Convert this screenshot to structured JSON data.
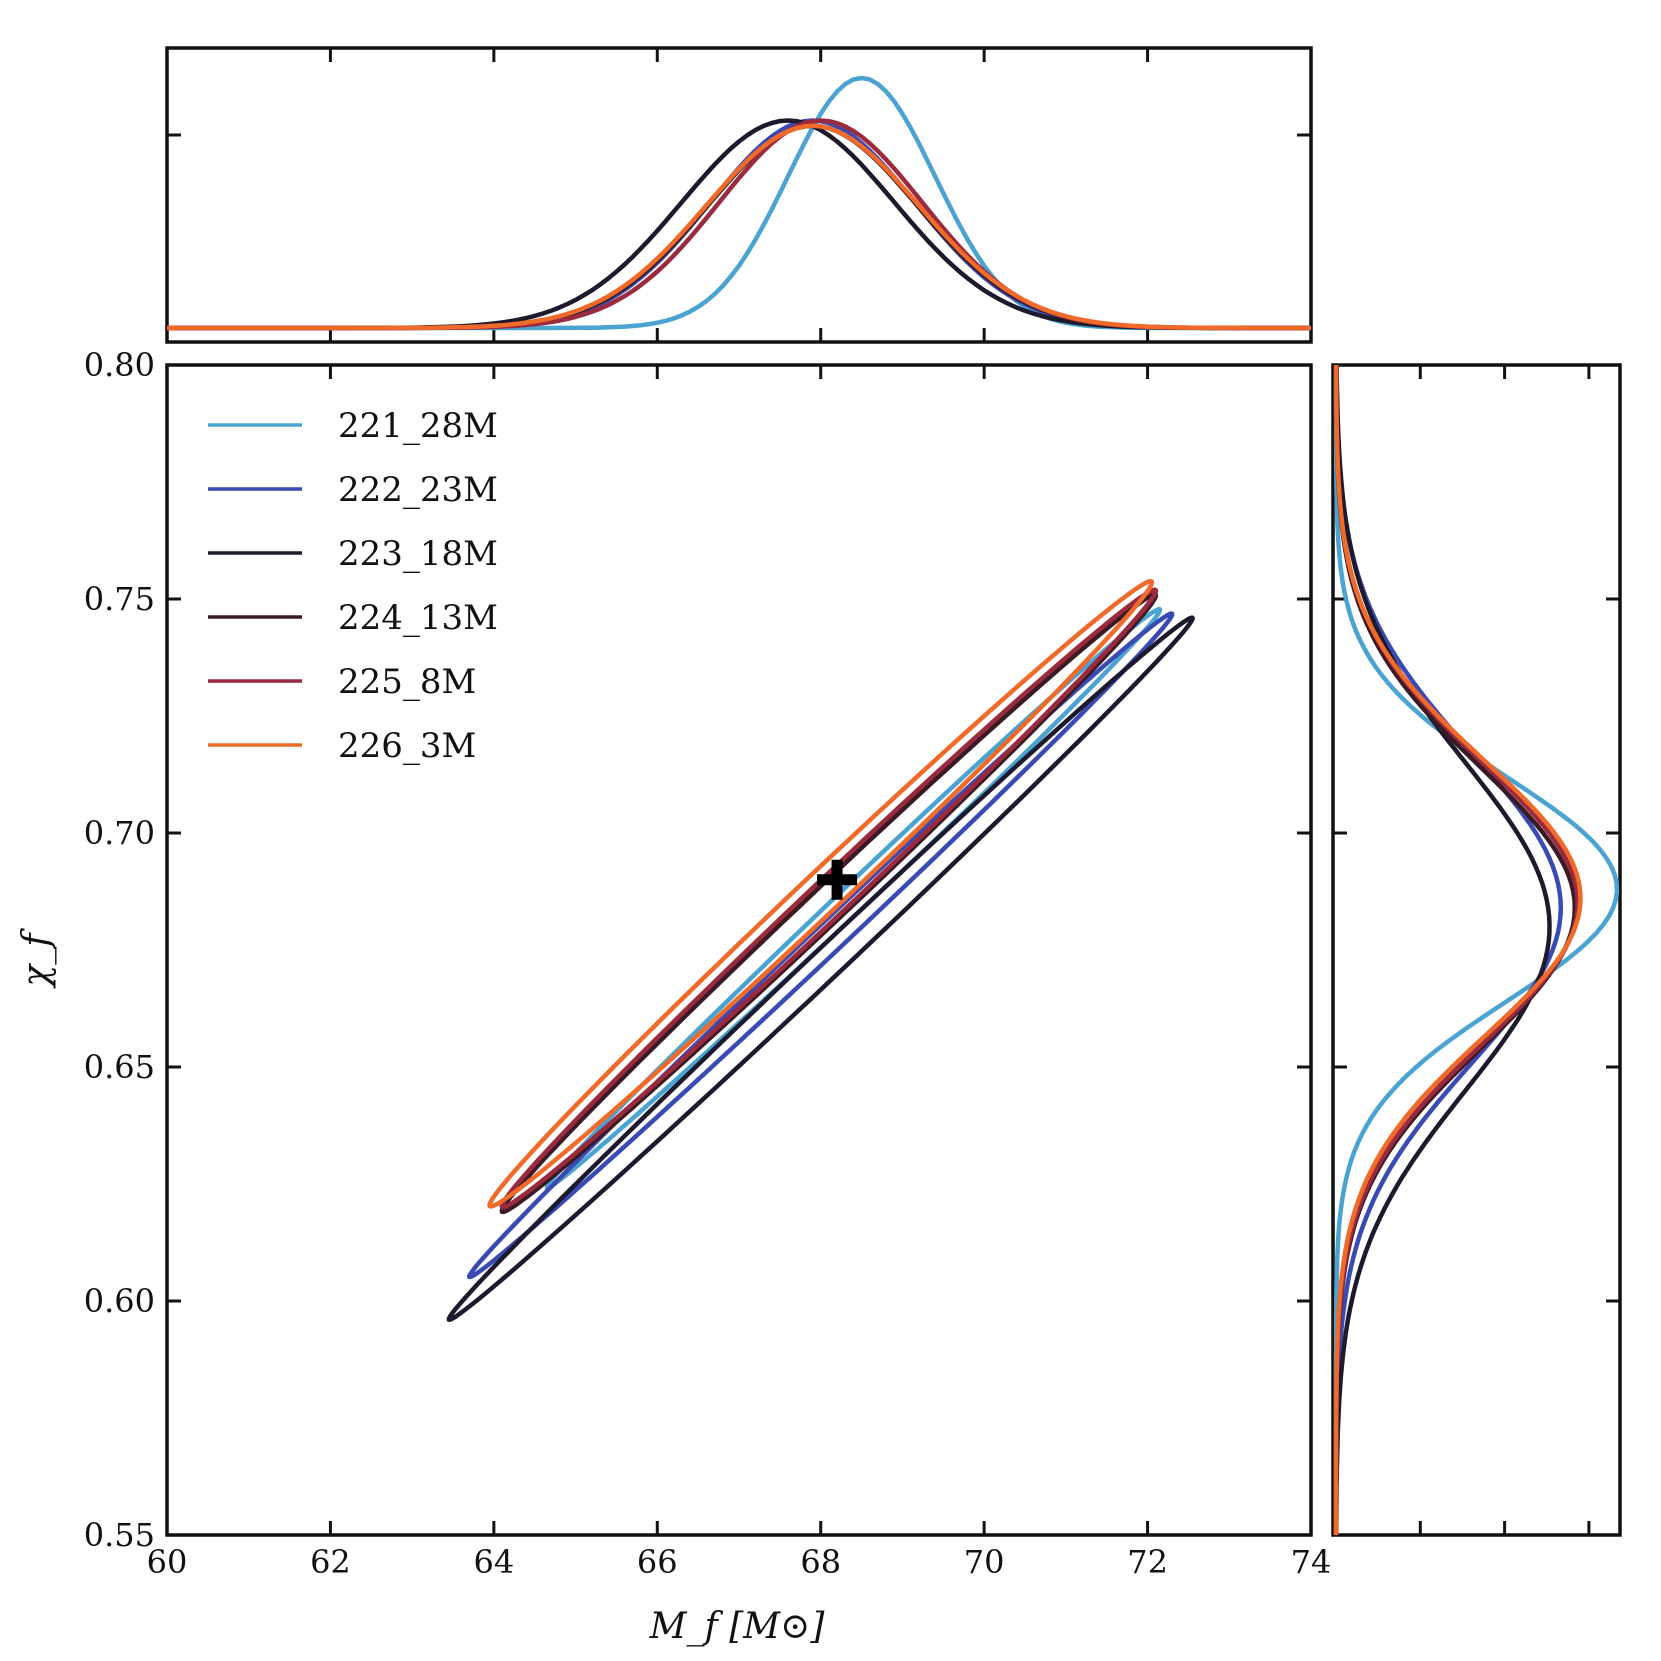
{
  "chart_data": {
    "type": "corner-plot",
    "xlabel": "M_f [M⊙]",
    "ylabel": "χ_f",
    "xlim": [
      60,
      74
    ],
    "ylim": [
      0.55,
      0.8
    ],
    "x_tick_labels": [
      "60",
      "62",
      "64",
      "66",
      "68",
      "70",
      "72",
      "74"
    ],
    "y_tick_labels": [
      "0.55",
      "0.60",
      "0.65",
      "0.70",
      "0.75",
      "0.80"
    ],
    "legend_position": "top-left",
    "marker": {
      "label": "true-value",
      "x": 68.2,
      "y": 0.69,
      "symbol": "plus"
    },
    "series": [
      {
        "name": "221_28M",
        "color": "#4aa3d0",
        "mx": 68.5,
        "sx": 0.9,
        "my": 0.688,
        "sy": 0.024,
        "px": 0.94,
        "py": 1.0,
        "contour": {
          "cx": 68.4,
          "cy": 0.686,
          "a": 3.75,
          "b": 0.3,
          "tilt": 0.9
        }
      },
      {
        "name": "222_23M",
        "color": "#3a4ab3",
        "mx": 67.9,
        "sx": 1.25,
        "my": 0.684,
        "sy": 0.033,
        "px": 0.78,
        "py": 0.8,
        "contour": {
          "cx": 68.0,
          "cy": 0.676,
          "a": 4.3,
          "b": 0.33,
          "tilt": 0.5
        }
      },
      {
        "name": "223_18M",
        "color": "#1e1a2e",
        "mx": 67.6,
        "sx": 1.3,
        "my": 0.68,
        "sy": 0.035,
        "px": 0.78,
        "py": 0.76,
        "contour": {
          "cx": 68.0,
          "cy": 0.671,
          "a": 4.55,
          "b": 0.34,
          "tilt": 0.3
        }
      },
      {
        "name": "224_13M",
        "color": "#3a1a24",
        "mx": 67.9,
        "sx": 1.28,
        "my": 0.684,
        "sy": 0.03,
        "px": 0.76,
        "py": 0.85,
        "contour": {
          "cx": 68.1,
          "cy": 0.685,
          "a": 4.0,
          "b": 0.4,
          "tilt": 0.0
        }
      },
      {
        "name": "225_8M",
        "color": "#9a2a3e",
        "mx": 68.0,
        "sx": 1.24,
        "my": 0.685,
        "sy": 0.03,
        "px": 0.78,
        "py": 0.86,
        "contour": {
          "cx": 68.1,
          "cy": 0.686,
          "a": 4.0,
          "b": 0.42,
          "tilt": 0.0
        }
      },
      {
        "name": "226_3M",
        "color": "#f06a2a",
        "mx": 67.9,
        "sx": 1.3,
        "my": 0.686,
        "sy": 0.0295,
        "px": 0.76,
        "py": 0.87,
        "contour": {
          "cx": 68.0,
          "cy": 0.687,
          "a": 4.05,
          "b": 0.45,
          "tilt": 0.0
        }
      }
    ]
  }
}
